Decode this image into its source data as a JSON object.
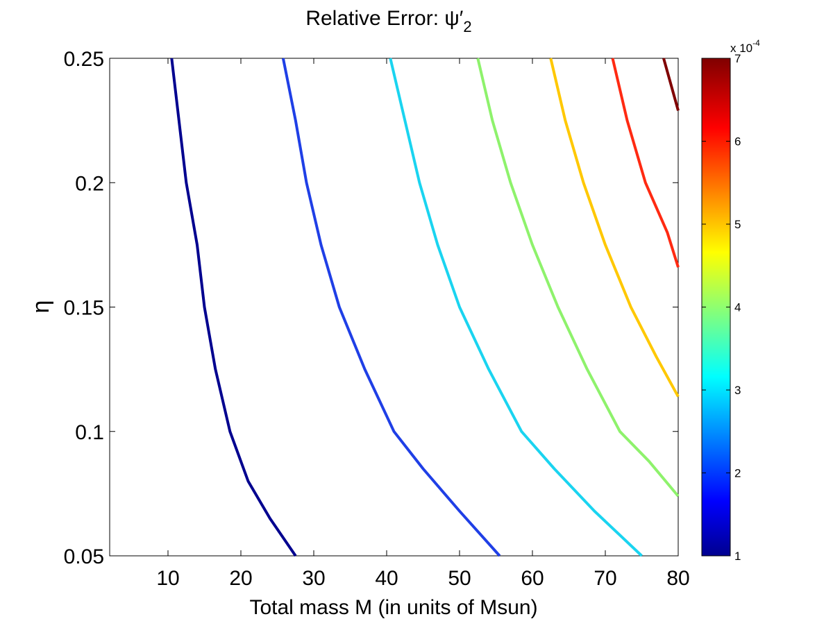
{
  "chart_data": {
    "type": "contour",
    "title": {
      "main": "Relative Error: ψ′",
      "subscript": "2"
    },
    "xlabel": "Total mass M (in units of Msun)",
    "ylabel": "η",
    "xlim": [
      2,
      80
    ],
    "ylim": [
      0.05,
      0.25
    ],
    "xticks": [
      10,
      20,
      30,
      40,
      50,
      60,
      70,
      80
    ],
    "yticks": [
      0.05,
      0.1,
      0.15,
      0.2,
      0.25
    ],
    "ytick_labels": [
      "0.05",
      "0.1",
      "0.15",
      "0.2",
      "0.25"
    ],
    "grid": false,
    "colorbar": {
      "colormap": "jet",
      "vmin": 1,
      "vmax": 7,
      "ticks": [
        1,
        2,
        3,
        4,
        5,
        6,
        7
      ],
      "exponent_label": {
        "base": "x 10",
        "exponent": "-4"
      }
    },
    "series": [
      {
        "level": 1.0,
        "color": "#00008f",
        "points": [
          [
            10.5,
            0.25
          ],
          [
            11.5,
            0.225
          ],
          [
            12.5,
            0.2
          ],
          [
            14,
            0.175
          ],
          [
            15,
            0.15
          ],
          [
            16.5,
            0.125
          ],
          [
            18.5,
            0.1
          ],
          [
            21,
            0.08
          ],
          [
            24,
            0.065
          ],
          [
            27.5,
            0.05
          ]
        ]
      },
      {
        "level": 2.0,
        "color": "#1f3fe6",
        "points": [
          [
            25.8,
            0.25
          ],
          [
            27.5,
            0.225
          ],
          [
            29,
            0.2
          ],
          [
            31,
            0.175
          ],
          [
            33.5,
            0.15
          ],
          [
            37,
            0.125
          ],
          [
            41,
            0.1
          ],
          [
            45,
            0.085
          ],
          [
            50,
            0.068
          ],
          [
            55.5,
            0.05
          ]
        ]
      },
      {
        "level": 3.0,
        "color": "#1ad4f0",
        "points": [
          [
            40.5,
            0.25
          ],
          [
            42.5,
            0.225
          ],
          [
            44.5,
            0.2
          ],
          [
            47,
            0.175
          ],
          [
            50,
            0.15
          ],
          [
            54,
            0.125
          ],
          [
            58.5,
            0.1
          ],
          [
            63,
            0.085
          ],
          [
            68.5,
            0.068
          ],
          [
            75,
            0.05
          ]
        ]
      },
      {
        "level": 4.0,
        "color": "#8ef26c",
        "points": [
          [
            52.5,
            0.25
          ],
          [
            54.5,
            0.225
          ],
          [
            57,
            0.2
          ],
          [
            60,
            0.175
          ],
          [
            63.5,
            0.15
          ],
          [
            67.5,
            0.125
          ],
          [
            72,
            0.1
          ],
          [
            76,
            0.088
          ],
          [
            80,
            0.074
          ]
        ]
      },
      {
        "level": 5.0,
        "color": "#ffc800",
        "points": [
          [
            62.5,
            0.25
          ],
          [
            64.5,
            0.225
          ],
          [
            67,
            0.2
          ],
          [
            70,
            0.175
          ],
          [
            73.5,
            0.15
          ],
          [
            77,
            0.13
          ],
          [
            80,
            0.114
          ]
        ]
      },
      {
        "level": 6.0,
        "color": "#ff2a12",
        "points": [
          [
            71,
            0.25
          ],
          [
            73,
            0.225
          ],
          [
            75.5,
            0.2
          ],
          [
            78.5,
            0.18
          ],
          [
            80,
            0.166
          ]
        ]
      },
      {
        "level": 7.0,
        "color": "#800000",
        "points": [
          [
            78,
            0.25
          ],
          [
            80,
            0.229
          ]
        ]
      }
    ]
  }
}
